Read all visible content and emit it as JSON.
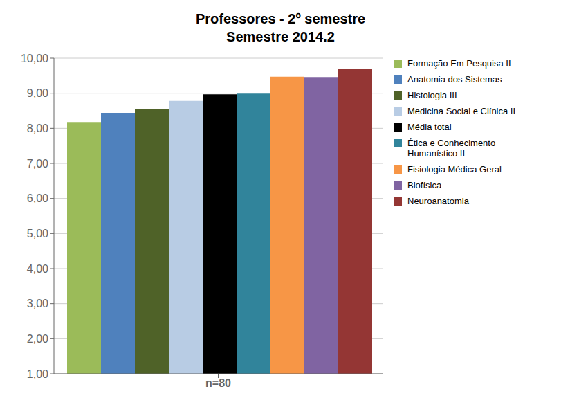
{
  "chart_data": {
    "type": "bar",
    "title": "Professores - 2º semestre\nSemestre 2014.2",
    "categories": [
      "n=80"
    ],
    "series": [
      {
        "name": "Formação Em Pesquisa II",
        "color": "#9BBB59",
        "values": [
          8.18
        ]
      },
      {
        "name": "Anatomia dos Sistemas",
        "color": "#4F81BD",
        "values": [
          8.44
        ]
      },
      {
        "name": "Histologia III",
        "color": "#4F6228",
        "values": [
          8.54
        ]
      },
      {
        "name": "Medicina Social e Clínica II",
        "color": "#B8CCE4",
        "values": [
          8.78
        ]
      },
      {
        "name": "Média total",
        "color": "#000000",
        "values": [
          8.97
        ]
      },
      {
        "name": "Ética e Conhecimento\nHumanístico II",
        "color": "#31849B",
        "values": [
          8.99
        ]
      },
      {
        "name": "Fisiologia Médica Geral",
        "color": "#F79646",
        "values": [
          9.47
        ]
      },
      {
        "name": "Biofísica",
        "color": "#8064A2",
        "values": [
          9.46
        ]
      },
      {
        "name": "Neuroanatomia",
        "color": "#943634",
        "values": [
          9.7
        ]
      }
    ],
    "ylim": [
      1.0,
      10.0
    ],
    "yticks": [
      {
        "value": 1.0,
        "label": "1,00"
      },
      {
        "value": 2.0,
        "label": "2,00"
      },
      {
        "value": 3.0,
        "label": "3,00"
      },
      {
        "value": 4.0,
        "label": "4,00"
      },
      {
        "value": 5.0,
        "label": "5,00"
      },
      {
        "value": 6.0,
        "label": "6,00"
      },
      {
        "value": 7.0,
        "label": "7,00"
      },
      {
        "value": 8.0,
        "label": "8,00"
      },
      {
        "value": 9.0,
        "label": "9,00"
      },
      {
        "value": 10.0,
        "label": "10,00"
      }
    ],
    "grid": true,
    "legend": "right"
  }
}
